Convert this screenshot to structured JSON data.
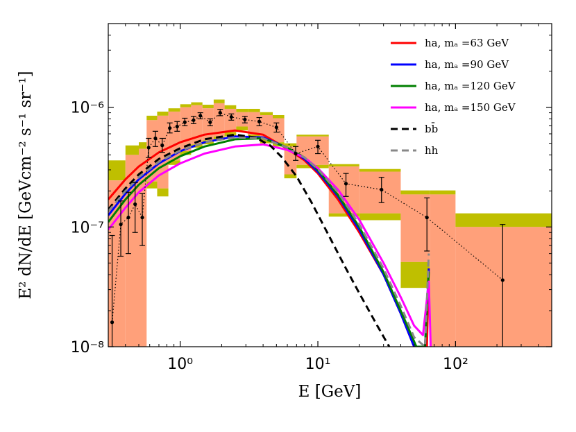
{
  "chart_data": {
    "type": "line",
    "title": "",
    "xlabel": "E [GeV]",
    "ylabel": "E² dN/dE [GeVcm⁻² s⁻¹ sr⁻¹]",
    "xscale": "log",
    "yscale": "log",
    "xlim": [
      0.3,
      500
    ],
    "ylim": [
      1e-08,
      5e-06
    ],
    "grid": false,
    "legend_position": "top-right",
    "x_ticks": [
      {
        "value": 1,
        "label": "10⁰"
      },
      {
        "value": 10,
        "label": "10¹"
      },
      {
        "value": 100,
        "label": "10²"
      }
    ],
    "y_ticks": [
      {
        "value": 1e-08,
        "label": "10⁻⁸"
      },
      {
        "value": 1e-07,
        "label": "10⁻⁷"
      },
      {
        "value": 1e-06,
        "label": "10⁻⁶"
      }
    ],
    "colors": {
      "band_salmon": "#ffa07a",
      "band_olive": "#bfbf00",
      "data_points": "#000000"
    },
    "bands": [
      {
        "x0": 0.3,
        "x1": 0.4,
        "ylo_outer": 1e-08,
        "ylo_inner": 1e-08,
        "yhi_inner": 2.45e-07,
        "yhi_outer": 3.6e-07
      },
      {
        "x0": 0.4,
        "x1": 0.5,
        "ylo_outer": 1e-08,
        "ylo_inner": 1e-08,
        "yhi_inner": 4e-07,
        "yhi_outer": 4.8e-07
      },
      {
        "x0": 0.5,
        "x1": 0.57,
        "ylo_outer": 1e-08,
        "ylo_inner": 1e-08,
        "yhi_inner": 4.5e-07,
        "yhi_outer": 5.1e-07
      },
      {
        "x0": 0.57,
        "x1": 0.68,
        "ylo_outer": 2.1e-07,
        "ylo_inner": 2.4e-07,
        "yhi_inner": 7.8e-07,
        "yhi_outer": 8.5e-07
      },
      {
        "x0": 0.68,
        "x1": 0.82,
        "ylo_outer": 1.8e-07,
        "ylo_inner": 2.1e-07,
        "yhi_inner": 8.5e-07,
        "yhi_outer": 9.2e-07
      },
      {
        "x0": 0.82,
        "x1": 1.0,
        "ylo_outer": 3.3e-07,
        "ylo_inner": 3.6e-07,
        "yhi_inner": 9.2e-07,
        "yhi_outer": 9.8e-07
      },
      {
        "x0": 1.0,
        "x1": 1.2,
        "ylo_outer": 4e-07,
        "ylo_inner": 4.3e-07,
        "yhi_inner": 1e-06,
        "yhi_outer": 1.06e-06
      },
      {
        "x0": 1.2,
        "x1": 1.45,
        "ylo_outer": 4.6e-07,
        "ylo_inner": 4.9e-07,
        "yhi_inner": 1.04e-06,
        "yhi_outer": 1.1e-06
      },
      {
        "x0": 1.45,
        "x1": 1.75,
        "ylo_outer": 4.9e-07,
        "ylo_inner": 5.3e-07,
        "yhi_inner": 9.8e-07,
        "yhi_outer": 1.05e-06
      },
      {
        "x0": 1.75,
        "x1": 2.1,
        "ylo_outer": 5.3e-07,
        "ylo_inner": 5.7e-07,
        "yhi_inner": 1.08e-06,
        "yhi_outer": 1.16e-06
      },
      {
        "x0": 2.1,
        "x1": 2.55,
        "ylo_outer": 5.7e-07,
        "ylo_inner": 6.2e-07,
        "yhi_inner": 9.7e-07,
        "yhi_outer": 1.04e-06
      },
      {
        "x0": 2.55,
        "x1": 3.1,
        "ylo_outer": 6.4e-07,
        "ylo_inner": 6.9e-07,
        "yhi_inner": 9.1e-07,
        "yhi_outer": 9.7e-07
      },
      {
        "x0": 3.1,
        "x1": 3.8,
        "ylo_outer": 5.5e-07,
        "ylo_inner": 5.9e-07,
        "yhi_inner": 9.1e-07,
        "yhi_outer": 9.7e-07
      },
      {
        "x0": 3.8,
        "x1": 4.7,
        "ylo_outer": 5e-07,
        "ylo_inner": 5.4e-07,
        "yhi_inner": 8.6e-07,
        "yhi_outer": 9.1e-07
      },
      {
        "x0": 4.7,
        "x1": 5.7,
        "ylo_outer": 4.7e-07,
        "ylo_inner": 5.1e-07,
        "yhi_inner": 8.1e-07,
        "yhi_outer": 8.6e-07
      },
      {
        "x0": 5.7,
        "x1": 7.0,
        "ylo_outer": 2.55e-07,
        "ylo_inner": 2.75e-07,
        "yhi_inner": 4.7e-07,
        "yhi_outer": 5e-07
      },
      {
        "x0": 7.0,
        "x1": 12.0,
        "ylo_outer": 3.1e-07,
        "ylo_inner": 3.3e-07,
        "yhi_inner": 5.7e-07,
        "yhi_outer": 5.9e-07
      },
      {
        "x0": 12.0,
        "x1": 20.0,
        "ylo_outer": 1.22e-07,
        "ylo_inner": 1.3e-07,
        "yhi_inner": 3.2e-07,
        "yhi_outer": 3.35e-07
      },
      {
        "x0": 20.0,
        "x1": 40.0,
        "ylo_outer": 1.14e-07,
        "ylo_inner": 1.3e-07,
        "yhi_inner": 2.9e-07,
        "yhi_outer": 3.05e-07
      },
      {
        "x0": 40.0,
        "x1": 65.0,
        "ylo_outer": 3.1e-08,
        "ylo_inner": 5.1e-08,
        "yhi_inner": 1.87e-07,
        "yhi_outer": 2.02e-07
      },
      {
        "x0": 65.0,
        "x1": 100.0,
        "ylo_outer": 1e-08,
        "ylo_inner": 1e-08,
        "yhi_inner": 1.87e-07,
        "yhi_outer": 2.02e-07
      },
      {
        "x0": 100.0,
        "x1": 500.0,
        "ylo_outer": 1e-08,
        "ylo_inner": 1e-08,
        "yhi_inner": 1e-07,
        "yhi_outer": 1.3e-07
      }
    ],
    "data_points": [
      {
        "x": 0.32,
        "y": 1.6e-08,
        "ylo": 1e-08,
        "yhi": 8.5e-08
      },
      {
        "x": 0.37,
        "y": 1.05e-07,
        "ylo": 5.7e-08,
        "yhi": 1.65e-07
      },
      {
        "x": 0.42,
        "y": 1.2e-07,
        "ylo": 6e-08,
        "yhi": 1.95e-07
      },
      {
        "x": 0.47,
        "y": 1.55e-07,
        "ylo": 9e-08,
        "yhi": 2.35e-07
      },
      {
        "x": 0.53,
        "y": 1.2e-07,
        "ylo": 7e-08,
        "yhi": 1.9e-07
      },
      {
        "x": 0.59,
        "y": 4.6e-07,
        "ylo": 3.8e-07,
        "yhi": 5.5e-07
      },
      {
        "x": 0.66,
        "y": 5.5e-07,
        "ylo": 4.7e-07,
        "yhi": 6.3e-07
      },
      {
        "x": 0.74,
        "y": 4.8e-07,
        "ylo": 4.2e-07,
        "yhi": 5.5e-07
      },
      {
        "x": 0.84,
        "y": 6.7e-07,
        "ylo": 6.1e-07,
        "yhi": 7.4e-07
      },
      {
        "x": 0.95,
        "y": 6.9e-07,
        "ylo": 6.3e-07,
        "yhi": 7.6e-07
      },
      {
        "x": 1.08,
        "y": 7.5e-07,
        "ylo": 7e-07,
        "yhi": 8.1e-07
      },
      {
        "x": 1.25,
        "y": 7.8e-07,
        "ylo": 7.3e-07,
        "yhi": 8.4e-07
      },
      {
        "x": 1.4,
        "y": 8.5e-07,
        "ylo": 8e-07,
        "yhi": 9e-07
      },
      {
        "x": 1.65,
        "y": 7.5e-07,
        "ylo": 7e-07,
        "yhi": 8e-07
      },
      {
        "x": 1.95,
        "y": 9e-07,
        "ylo": 8.5e-07,
        "yhi": 9.6e-07
      },
      {
        "x": 2.35,
        "y": 8.3e-07,
        "ylo": 7.8e-07,
        "yhi": 8.8e-07
      },
      {
        "x": 2.95,
        "y": 7.9e-07,
        "ylo": 7.4e-07,
        "yhi": 8.4e-07
      },
      {
        "x": 3.75,
        "y": 7.6e-07,
        "ylo": 7e-07,
        "yhi": 8.2e-07
      },
      {
        "x": 5.0,
        "y": 6.8e-07,
        "ylo": 6.2e-07,
        "yhi": 7.4e-07
      },
      {
        "x": 6.9,
        "y": 4.1e-07,
        "ylo": 3.6e-07,
        "yhi": 4.7e-07
      },
      {
        "x": 10.0,
        "y": 4.7e-07,
        "ylo": 4.1e-07,
        "yhi": 5.3e-07
      },
      {
        "x": 16.0,
        "y": 2.3e-07,
        "ylo": 1.8e-07,
        "yhi": 2.8e-07
      },
      {
        "x": 29.0,
        "y": 2.05e-07,
        "ylo": 1.6e-07,
        "yhi": 2.6e-07
      },
      {
        "x": 62.0,
        "y": 1.2e-07,
        "ylo": 6.3e-08,
        "yhi": 1.75e-07
      },
      {
        "x": 220.0,
        "y": 3.6e-08,
        "ylo": 1e-08,
        "yhi": 1.05e-07
      }
    ],
    "series": [
      {
        "name": "ha, m_a =63 GeV",
        "legend_label": "ha, mₐ =63 GeV",
        "color": "#ff0000",
        "style": "solid",
        "x": [
          0.3,
          0.4,
          0.5,
          0.7,
          1.0,
          1.5,
          2.5,
          4.0,
          6.0,
          8.0,
          10.0,
          14.0,
          20.0,
          30.0,
          40.0,
          50.0,
          62.0,
          64.0
        ],
        "y": [
          1.7e-07,
          2.5e-07,
          3.2e-07,
          4.2e-07,
          5.1e-07,
          5.9e-07,
          6.4e-07,
          5.9e-07,
          4.5e-07,
          3.6e-07,
          2.8e-07,
          1.7e-07,
          9e-08,
          4e-08,
          1.9e-08,
          1e-08,
          1e-08,
          4.5e-08
        ]
      },
      {
        "name": "ha, m_a =90 GeV",
        "legend_label": "ha, mₐ =90 GeV",
        "color": "#0000ff",
        "style": "solid",
        "x": [
          0.3,
          0.4,
          0.5,
          0.7,
          1.0,
          1.5,
          2.5,
          4.0,
          6.0,
          8.0,
          10.0,
          14.0,
          20.0,
          30.0,
          40.0,
          50.0,
          60.0,
          64.0
        ],
        "y": [
          1.25e-07,
          1.9e-07,
          2.5e-07,
          3.4e-07,
          4.3e-07,
          5.1e-07,
          5.7e-07,
          5.6e-07,
          4.6e-07,
          3.7e-07,
          2.9e-07,
          1.8e-07,
          9.5e-08,
          4e-08,
          1.9e-08,
          1e-08,
          1e-08,
          4.5e-08
        ]
      },
      {
        "name": "ha, m_a =120 GeV",
        "legend_label": "ha, mₐ =120 GeV",
        "color": "#007f00",
        "style": "solid",
        "x": [
          0.3,
          0.4,
          0.5,
          0.7,
          1.0,
          1.5,
          2.5,
          4.0,
          6.0,
          8.0,
          10.0,
          14.0,
          20.0,
          30.0,
          40.0,
          52.0,
          60.0,
          64.0
        ],
        "y": [
          1.1e-07,
          1.7e-07,
          2.25e-07,
          3.1e-07,
          3.9e-07,
          4.7e-07,
          5.4e-07,
          5.5e-07,
          4.6e-07,
          3.8e-07,
          3e-07,
          1.85e-07,
          1e-07,
          4.2e-08,
          2e-08,
          1e-08,
          1e-08,
          4.2e-08
        ]
      },
      {
        "name": "ha, m_a =150 GeV",
        "legend_label": "ha, mₐ =150 GeV",
        "color": "#ff00ff",
        "style": "solid",
        "x": [
          0.3,
          0.4,
          0.5,
          0.7,
          1.0,
          1.5,
          2.5,
          4.0,
          6.0,
          8.0,
          10.0,
          14.0,
          20.0,
          30.0,
          40.0,
          50.0,
          58.0,
          64.0,
          66.0
        ],
        "y": [
          9.5e-08,
          1.45e-07,
          1.95e-07,
          2.7e-07,
          3.4e-07,
          4.1e-07,
          4.7e-07,
          4.9e-07,
          4.4e-07,
          3.8e-07,
          3.1e-07,
          2.05e-07,
          1.15e-07,
          5e-08,
          2.6e-08,
          1.5e-08,
          1.25e-08,
          3.5e-08,
          1e-08
        ]
      },
      {
        "name": "b b̄",
        "legend_label": "bb̄",
        "color": "#000000",
        "style": "dashed",
        "x": [
          0.3,
          0.4,
          0.5,
          0.7,
          1.0,
          1.5,
          2.5,
          3.5,
          4.5,
          5.5,
          7.0,
          9.0,
          12.0,
          16.0,
          20.0,
          27.0,
          33.0
        ],
        "y": [
          1.4e-07,
          2.1e-07,
          2.75e-07,
          3.7e-07,
          4.55e-07,
          5.4e-07,
          5.9e-07,
          5.6e-07,
          4.8e-07,
          3.8e-07,
          2.65e-07,
          1.6e-07,
          8.5e-08,
          4.5e-08,
          2.8e-08,
          1.5e-08,
          1e-08
        ]
      },
      {
        "name": "hh",
        "legend_label": "hh",
        "color": "#888888",
        "style": "dashed",
        "x": [
          0.3,
          0.4,
          0.5,
          0.7,
          1.0,
          1.5,
          2.5,
          4.0,
          6.0,
          8.0,
          10.0,
          14.0,
          20.0,
          30.0,
          40.0,
          50.0,
          60.0,
          64.0
        ],
        "y": [
          1.35e-07,
          2e-07,
          2.6e-07,
          3.5e-07,
          4.35e-07,
          5.1e-07,
          5.6e-07,
          5.5e-07,
          4.6e-07,
          3.8e-07,
          3.05e-07,
          1.95e-07,
          1.05e-07,
          4.5e-08,
          2.2e-08,
          1.2e-08,
          1e-08,
          6e-08
        ]
      }
    ]
  }
}
